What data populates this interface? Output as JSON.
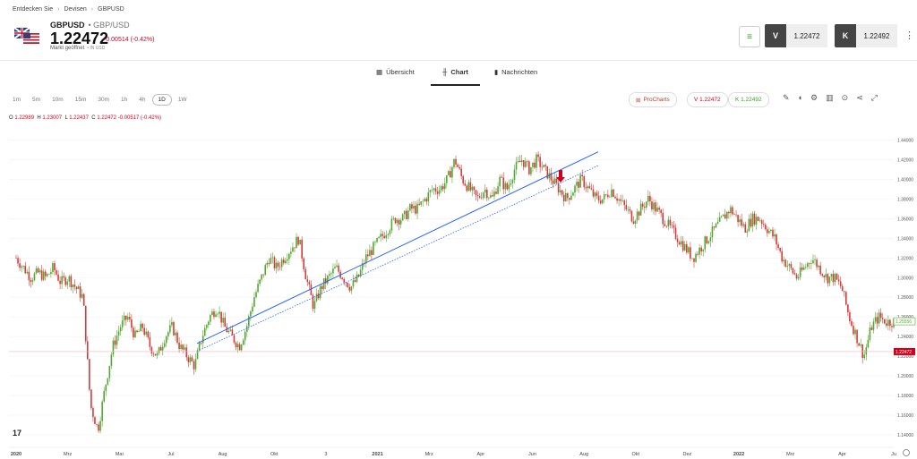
{
  "breadcrumb": {
    "items": [
      "Entdecken Sie",
      "Devisen",
      "GBPUSD"
    ]
  },
  "header": {
    "symbol": "GBPUSD",
    "symbol_sub": "GBP/USD",
    "price": "1.22472",
    "change": "-0.00514 (-0.42%)",
    "status": "Markt geöffnet",
    "status_small": "• IN USD",
    "sell_label": "V",
    "sell_value": "1.22472",
    "buy_label": "K",
    "buy_value": "1.22492"
  },
  "tabs": [
    {
      "label": "Übersicht",
      "icon": "grid-icon"
    },
    {
      "label": "Chart",
      "icon": "candlestick-icon"
    },
    {
      "label": "Nachrichten",
      "icon": "news-icon"
    }
  ],
  "timeframes": [
    "1m",
    "5m",
    "10m",
    "15m",
    "30m",
    "1h",
    "4h",
    "1D",
    "1W"
  ],
  "selected_timeframe": "1D",
  "toolbar": {
    "procharts": "ProCharts",
    "sell_pill": "V 1.22472",
    "buy_pill": "K 1.22492",
    "icons": [
      "pencil-icon",
      "indicator-icon",
      "gear-icon",
      "bar-chart-icon",
      "info-icon",
      "share-icon",
      "expand-icon"
    ]
  },
  "ohlc": {
    "o_label": "O",
    "o": "1.22989",
    "h_label": "H",
    "h": "1.23007",
    "l_label": "L",
    "l": "1.22437",
    "c_label": "C",
    "c": "1.22472",
    "chg": "-0.00517 (-0.42%)"
  },
  "colors": {
    "up": "#26a69a",
    "down": "#ef5350",
    "up_candle": "#52a82f",
    "down_candle": "#d33b3b",
    "trend": "#2962ff",
    "price_line": "#d0021b"
  },
  "chart_data": {
    "type": "candlestick",
    "y_ticks": [
      "1.44000",
      "1.42000",
      "1.40000",
      "1.38000",
      "1.36000",
      "1.34000",
      "1.32000",
      "1.30000",
      "1.28000",
      "1.26000",
      "1.24000",
      "1.22000",
      "1.20000",
      "1.18000",
      "1.16000",
      "1.14000"
    ],
    "ylim": [
      1.13,
      1.455
    ],
    "x_labels": [
      "2020",
      "Mrz",
      "Mai",
      "Jul",
      "Aug",
      "Okt",
      "3",
      "2021",
      "Mrz",
      "Apr",
      "Jun",
      "Aug",
      "Okt",
      "Dez",
      "2022",
      "Mrz",
      "Apr",
      "Ju"
    ],
    "last_price": "1.22472",
    "marker_price": "1.25556",
    "close_path": [
      1.32,
      1.31,
      1.3,
      1.305,
      1.3,
      1.31,
      1.295,
      1.3,
      1.29,
      1.28,
      1.17,
      1.145,
      1.19,
      1.23,
      1.25,
      1.26,
      1.24,
      1.25,
      1.23,
      1.22,
      1.24,
      1.25,
      1.23,
      1.22,
      1.21,
      1.24,
      1.26,
      1.27,
      1.25,
      1.24,
      1.23,
      1.25,
      1.28,
      1.3,
      1.32,
      1.31,
      1.32,
      1.33,
      1.34,
      1.3,
      1.27,
      1.29,
      1.3,
      1.31,
      1.3,
      1.29,
      1.3,
      1.32,
      1.33,
      1.34,
      1.35,
      1.36,
      1.36,
      1.37,
      1.37,
      1.38,
      1.39,
      1.39,
      1.4,
      1.42,
      1.4,
      1.39,
      1.38,
      1.39,
      1.38,
      1.4,
      1.39,
      1.41,
      1.42,
      1.41,
      1.42,
      1.41,
      1.4,
      1.39,
      1.38,
      1.39,
      1.4,
      1.39,
      1.38,
      1.38,
      1.39,
      1.38,
      1.37,
      1.36,
      1.37,
      1.38,
      1.37,
      1.36,
      1.35,
      1.34,
      1.33,
      1.32,
      1.33,
      1.34,
      1.35,
      1.36,
      1.37,
      1.36,
      1.35,
      1.36,
      1.36,
      1.35,
      1.34,
      1.32,
      1.31,
      1.3,
      1.31,
      1.32,
      1.31,
      1.3,
      1.3,
      1.29,
      1.26,
      1.24,
      1.22,
      1.25,
      1.26,
      1.255,
      1.255
    ],
    "trendlines": [
      {
        "from": [
          "Jul 2020",
          1.23
        ],
        "to": [
          "Jun 2021",
          1.428
        ]
      },
      {
        "from": [
          "Jul 2020",
          1.225
        ],
        "to": [
          "Jun 2021",
          1.415
        ]
      }
    ]
  }
}
